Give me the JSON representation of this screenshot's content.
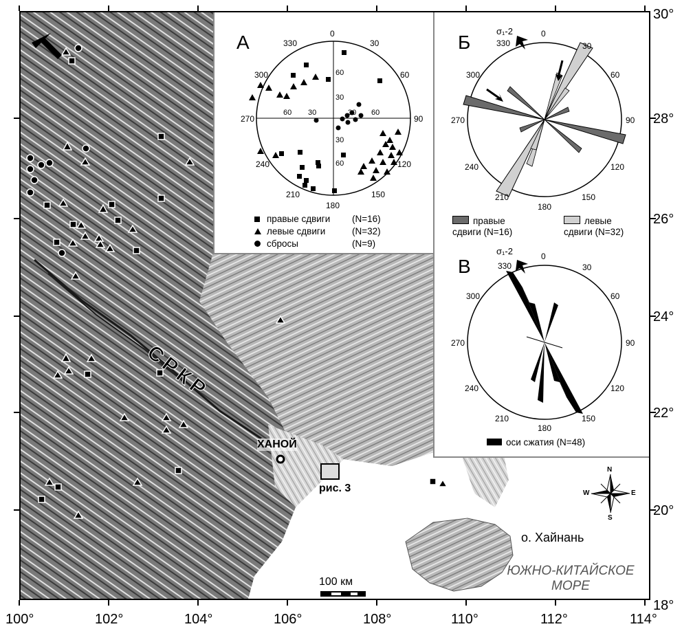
{
  "map": {
    "lon_labels": [
      "100°",
      "102°",
      "104°",
      "106°",
      "108°",
      "110°",
      "112°",
      "114°"
    ],
    "lat_labels_right": [
      "30°",
      "28°",
      "26°",
      "24°",
      "22°",
      "20°",
      "18°"
    ],
    "place_labels": {
      "hanoi": "ХАНОЙ",
      "fig3": "рис. 3",
      "fault": "СРКР",
      "hainan": "о. Хайнань",
      "sea_line1": "ЮЖНО-КИТАЙСКОЕ",
      "sea_line2": "МОРЕ"
    },
    "scale_label": "100 км",
    "compass": {
      "n": "N",
      "s": "S",
      "e": "E",
      "w": "W"
    }
  },
  "inset_a": {
    "letter": "А",
    "az_labels": {
      "330": "330",
      "0": "0",
      "30": "30",
      "300": "300",
      "60": "60",
      "270": "270",
      "90": "90",
      "240": "240",
      "120": "120",
      "210": "210",
      "180": "180",
      "150": "150"
    },
    "dip_labels": [
      "60",
      "30",
      "30",
      "60",
      "30",
      "60",
      "30",
      "60"
    ],
    "legend": [
      {
        "symbol": "square",
        "label": "правые сдвиги",
        "count": "(N=16)"
      },
      {
        "symbol": "triangle",
        "label": "левые сдвиги",
        "count": "(N=32)"
      },
      {
        "symbol": "circle",
        "label": "сбросы",
        "count": "(N=9)"
      }
    ]
  },
  "inset_b": {
    "letter": "Б",
    "sigma": "σ₁-2",
    "az_labels": {
      "330": "330",
      "0": "0",
      "30": "30",
      "300": "300",
      "60": "60",
      "270": "270",
      "90": "90",
      "240": "240",
      "120": "120",
      "210": "210",
      "180": "180",
      "150": "150"
    },
    "legend": [
      {
        "label_line1": "правые",
        "label_line2": "сдвиги (N=16)",
        "color": "#6b6b6b"
      },
      {
        "label_line1": "левые",
        "label_line2": "сдвиги (N=32)",
        "color": "#d0d0d0"
      }
    ]
  },
  "inset_c": {
    "letter": "В",
    "sigma": "σ₁-2",
    "az_labels": {
      "330": "330",
      "0": "0",
      "30": "30",
      "300": "300",
      "60": "60",
      "270": "270",
      "90": "90",
      "240": "240",
      "120": "120",
      "210": "210",
      "180": "180",
      "150": "150"
    },
    "legend": {
      "label": "оси сжатия (N=48)",
      "color": "#000000"
    }
  }
}
